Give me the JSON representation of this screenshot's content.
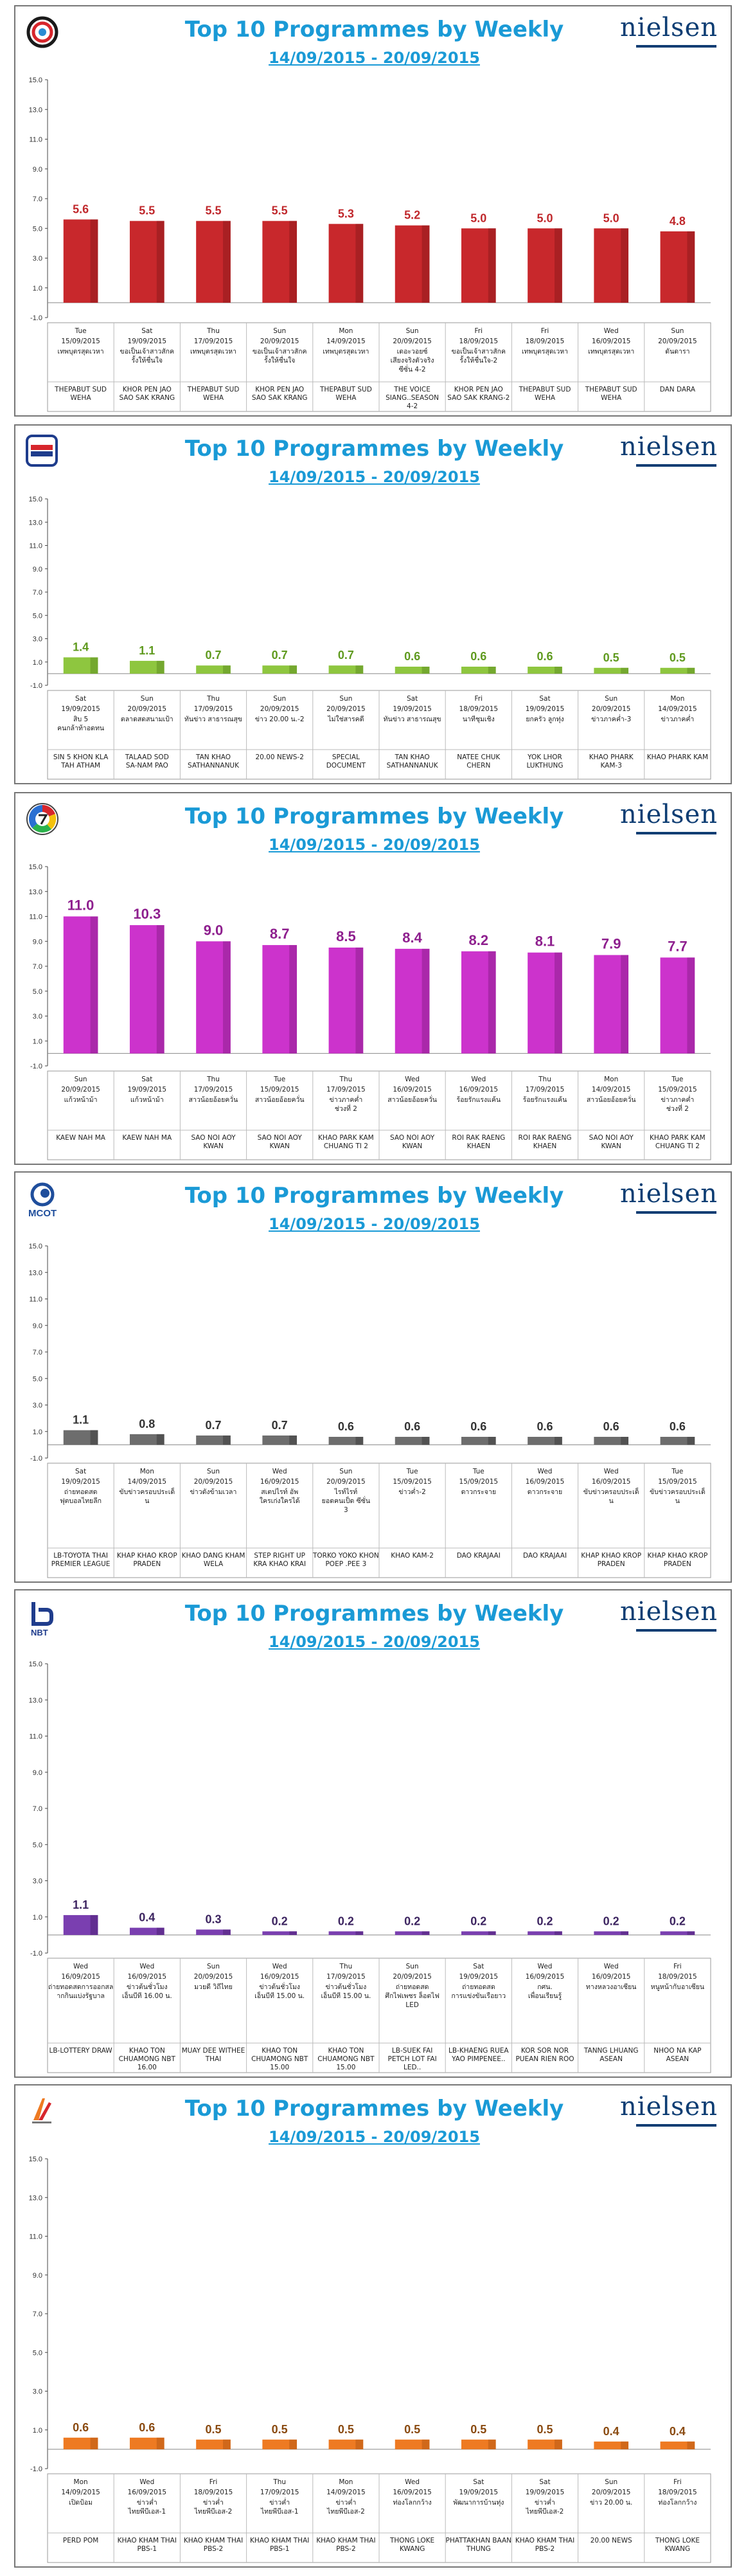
{
  "chart_data": [
    {
      "type": "bar",
      "title": "Top 10 Programmes by Weekly",
      "date_range": "14/09/2015 - 20/09/2015",
      "channel_logo": "channel-3-logo",
      "color": "#c8282c",
      "color_dark": "#8f1a1d",
      "value_color": "#c0282c",
      "ylim": [
        -1.0,
        15.0
      ],
      "yticks": [
        "15.0",
        "13.0",
        "11.0",
        "9.0",
        "7.0",
        "5.0",
        "3.0",
        "1.0",
        "-1.0"
      ],
      "categories": [
        "THEPABUT SUD WEHA",
        "KHOR PEN JAO SAO SAK KRANG",
        "THEPABUT SUD WEHA",
        "KHOR PEN JAO SAO SAK KRANG",
        "THEPABUT SUD WEHA",
        "THE VOICE SIANG..SEASON 4-2",
        "KHOR PEN JAO SAO SAK KRANG-2",
        "THEPABUT SUD WEHA",
        "THEPABUT SUD WEHA",
        "DAN DARA"
      ],
      "values": [
        5.6,
        5.5,
        5.5,
        5.5,
        5.3,
        5.2,
        5.0,
        5.0,
        5.0,
        4.8
      ],
      "days": [
        "Tue",
        "Sat",
        "Thu",
        "Sun",
        "Mon",
        "Sun",
        "Fri",
        "Fri",
        "Wed",
        "Sun"
      ],
      "dates": [
        "15/09/2015",
        "19/09/2015",
        "17/09/2015",
        "20/09/2015",
        "14/09/2015",
        "20/09/2015",
        "18/09/2015",
        "18/09/2015",
        "16/09/2015",
        "20/09/2015"
      ],
      "thai": [
        "เทพบุตรสุดเวหา",
        "ขอเป็นเจ้าสาวสักครั้งให้ชื่นใจ",
        "เทพบุตรสุดเวหา",
        "ขอเป็นเจ้าสาวสักครั้งให้ชื่นใจ",
        "เทพบุตรสุดเวหา",
        "เดอะวอยซ์ เสียงจริงตัวจริง ซีซั่น 4-2",
        "ขอเป็นเจ้าสาวสักครั้งให้ชื่นใจ-2",
        "เทพบุตรสุดเวหา",
        "เทพบุตรสุดเวหา",
        "ดันดารา"
      ]
    },
    {
      "type": "bar",
      "title": "Top 10 Programmes by Weekly",
      "date_range": "14/09/2015 - 20/09/2015",
      "channel_logo": "channel-5-logo",
      "color": "#8ec63f",
      "color_dark": "#5e8f22",
      "value_color": "#5f9a1e",
      "ylim": [
        -1.0,
        15.0
      ],
      "yticks": [
        "15.0",
        "13.0",
        "11.0",
        "9.0",
        "7.0",
        "5.0",
        "3.0",
        "1.0",
        "-1.0"
      ],
      "categories": [
        "SIN 5 KHON KLA TAH ATHAM",
        "TALAAD SOD SA-NAM PAO",
        "TAN KHAO SATHANNANUK",
        "20.00 NEWS-2",
        "SPECIAL DOCUMENT",
        "TAN KHAO SATHANNANUK",
        "NATEE CHUK CHERN",
        "YOK LHOR LUKTHUNG",
        "KHAO PHARK KAM-3",
        "KHAO PHARK KAM"
      ],
      "values": [
        1.4,
        1.1,
        0.7,
        0.7,
        0.7,
        0.6,
        0.6,
        0.6,
        0.5,
        0.5
      ],
      "days": [
        "Sat",
        "Sun",
        "Thu",
        "Sun",
        "Sun",
        "Sat",
        "Fri",
        "Sat",
        "Sun",
        "Mon"
      ],
      "dates": [
        "19/09/2015",
        "20/09/2015",
        "17/09/2015",
        "20/09/2015",
        "20/09/2015",
        "19/09/2015",
        "18/09/2015",
        "19/09/2015",
        "20/09/2015",
        "14/09/2015"
      ],
      "thai": [
        "สิบ 5 คนกล้าท้าอดทน",
        "ตลาดสดสนามเป้า",
        "ทันข่าว สาธารณสุข",
        "ข่าว 20.00 น.-2",
        "ไม่ใช่สารคดี",
        "ทันข่าว สาธารณสุข",
        "นาทีชุมเชิง",
        "ยกครัว ลูกทุ่ง",
        "ข่าวภาคค่ำ-3",
        "ข่าวภาคค่ำ"
      ]
    },
    {
      "type": "bar",
      "title": "Top 10 Programmes by Weekly",
      "date_range": "14/09/2015 - 20/09/2015",
      "channel_logo": "channel-7-logo",
      "color": "#cc33cc",
      "color_dark": "#8e1f8e",
      "value_color": "#8e1f8e",
      "ylim": [
        -1.0,
        15.0
      ],
      "yticks": [
        "15.0",
        "13.0",
        "11.0",
        "9.0",
        "7.0",
        "5.0",
        "3.0",
        "1.0",
        "-1.0"
      ],
      "categories": [
        "KAEW NAH MA",
        "KAEW NAH MA",
        "SAO NOI AOY KWAN",
        "SAO NOI AOY KWAN",
        "KHAO PARK KAM CHUANG TI 2",
        "SAO NOI AOY KWAN",
        "ROI RAK RAENG KHAEN",
        "ROI RAK RAENG KHAEN",
        "SAO NOI AOY KWAN",
        "KHAO PARK KAM CHUANG TI 2"
      ],
      "values": [
        11.0,
        10.3,
        9.0,
        8.7,
        8.5,
        8.4,
        8.2,
        8.1,
        7.9,
        7.7
      ],
      "days": [
        "Sun",
        "Sat",
        "Thu",
        "Tue",
        "Thu",
        "Wed",
        "Wed",
        "Thu",
        "Mon",
        "Tue"
      ],
      "dates": [
        "20/09/2015",
        "19/09/2015",
        "17/09/2015",
        "15/09/2015",
        "17/09/2015",
        "16/09/2015",
        "16/09/2015",
        "17/09/2015",
        "14/09/2015",
        "15/09/2015"
      ],
      "thai": [
        "แก้วหน้าม้า",
        "แก้วหน้าม้า",
        "สาวน้อยอ้อยควั่น",
        "สาวน้อยอ้อยควั่น",
        "ข่าวภาคค่ำ ช่วงที่ 2",
        "สาวน้อยอ้อยควั่น",
        "ร้อยรักแรงแค้น",
        "ร้อยรักแรงแค้น",
        "สาวน้อยอ้อยควั่น",
        "ข่าวภาคค่ำ ช่วงที่ 2"
      ]
    },
    {
      "type": "bar",
      "title": "Top 10 Programmes by Weekly",
      "date_range": "14/09/2015 - 20/09/2015",
      "channel_logo": "mcot-logo",
      "logo_text": "MCOT",
      "color": "#6d6d6d",
      "color_dark": "#3c3c3c",
      "value_color": "#333333",
      "ylim": [
        -1.0,
        15.0
      ],
      "yticks": [
        "15.0",
        "13.0",
        "11.0",
        "9.0",
        "7.0",
        "5.0",
        "3.0",
        "1.0",
        "-1.0"
      ],
      "categories": [
        "LB-TOYOTA THAI PREMIER LEAGUE",
        "KHAP KHAO KROP PRADEN",
        "KHAO DANG KHAM WELA",
        "STEP RIGHT UP KRA KHAO KRAI",
        "TORKO YOKO KHON POEP .PEE 3",
        "KHAO KAM-2",
        "DAO KRAJAAI",
        "DAO KRAJAAI",
        "KHAP KHAO KROP PRADEN",
        "KHAP KHAO KROP PRADEN"
      ],
      "values": [
        1.1,
        0.8,
        0.7,
        0.7,
        0.6,
        0.6,
        0.6,
        0.6,
        0.6,
        0.6
      ],
      "days": [
        "Sat",
        "Mon",
        "Sun",
        "Wed",
        "Sun",
        "Tue",
        "Tue",
        "Wed",
        "Wed",
        "Tue"
      ],
      "dates": [
        "19/09/2015",
        "14/09/2015",
        "20/09/2015",
        "16/09/2015",
        "20/09/2015",
        "15/09/2015",
        "15/09/2015",
        "16/09/2015",
        "16/09/2015",
        "15/09/2015"
      ],
      "thai": [
        "ถ่ายทอดสด ฟุตบอลไทยลีก",
        "ขับข่าวครอบประเด็น",
        "ข่าวดังข้ามเวลา",
        "สเตปไรท์ อัพ ใครเก่งใครได้",
        "ไรท์ไรท์ ยอดคนเป็ด ซีซั่น 3",
        "ข่าวค่ำ-2",
        "ดาวกระจาย",
        "ดาวกระจาย",
        "ขับข่าวครอบประเด็น",
        "ขับข่าวครอบประเด็น"
      ]
    },
    {
      "type": "bar",
      "title": "Top 10 Programmes by Weekly",
      "date_range": "14/09/2015 - 20/09/2015",
      "channel_logo": "nbt-logo",
      "logo_text": "NBT",
      "color": "#7a3fb0",
      "color_dark": "#4e2378",
      "value_color": "#3c2460",
      "ylim": [
        -1.0,
        15.0
      ],
      "yticks": [
        "15.0",
        "13.0",
        "11.0",
        "9.0",
        "7.0",
        "5.0",
        "3.0",
        "1.0",
        "-1.0"
      ],
      "categories": [
        "LB-LOTTERY DRAW",
        "KHAO TON CHUAMONG NBT 16.00",
        "MUAY DEE WITHEE THAI",
        "KHAO TON CHUAMONG NBT 15.00",
        "KHAO TON CHUAMONG NBT 15.00",
        "LB-SUEK FAI PETCH LOT FAI LED..",
        "LB-KHAENG RUEA YAO PIMPENEE..",
        "KOR SOR NOR PUEAN RIEN ROO",
        "TANNG LHUANG ASEAN",
        "NHOO NA KAP ASEAN"
      ],
      "values": [
        1.1,
        0.4,
        0.3,
        0.2,
        0.2,
        0.2,
        0.2,
        0.2,
        0.2,
        0.2
      ],
      "days": [
        "Wed",
        "Wed",
        "Sun",
        "Wed",
        "Thu",
        "Sun",
        "Sat",
        "Wed",
        "Wed",
        "Fri"
      ],
      "dates": [
        "16/09/2015",
        "16/09/2015",
        "20/09/2015",
        "16/09/2015",
        "17/09/2015",
        "20/09/2015",
        "19/09/2015",
        "16/09/2015",
        "16/09/2015",
        "18/09/2015"
      ],
      "thai": [
        "ถ่ายทอดสดการออกสลากกินแบ่งรัฐบาล",
        "ข่าวต้นชั่วโมง เอ็นบีที 16.00 น.",
        "มวยดี วิถีไทย",
        "ข่าวต้นชั่วโมง เอ็นบีที 15.00 น.",
        "ข่าวต้นชั่วโมง เอ็นบีที 15.00 น.",
        "ถ่ายทอดสด ศึกไฟเพชร ล็อตไฟ LED",
        "ถ่ายทอดสด การแข่งขันเรือยาว",
        "กศน. เพื่อนเรียนรู้",
        "ทางหลวงอาเซียน",
        "หนูหน้ากับอาเซียน"
      ]
    },
    {
      "type": "bar",
      "title": "Top 10 Programmes by Weekly",
      "date_range": "14/09/2015 - 20/09/2015",
      "channel_logo": "thai-pbs-logo",
      "color": "#ee7a22",
      "color_dark": "#b85a14",
      "value_color": "#8a4a10",
      "ylim": [
        -1.0,
        15.0
      ],
      "yticks": [
        "15.0",
        "13.0",
        "11.0",
        "9.0",
        "7.0",
        "5.0",
        "3.0",
        "1.0",
        "-1.0"
      ],
      "categories": [
        "PERD POM",
        "KHAO KHAM THAI PBS-1",
        "KHAO KHAM THAI PBS-2",
        "KHAO KHAM THAI PBS-1",
        "KHAO KHAM THAI PBS-2",
        "THONG LOKE KWANG",
        "PHATTAKHAN BAAN THUNG",
        "KHAO KHAM THAI PBS-2",
        "20.00 NEWS",
        "THONG LOKE KWANG"
      ],
      "values": [
        0.6,
        0.6,
        0.5,
        0.5,
        0.5,
        0.5,
        0.5,
        0.5,
        0.4,
        0.4
      ],
      "days": [
        "Mon",
        "Wed",
        "Fri",
        "Thu",
        "Mon",
        "Wed",
        "Sat",
        "Sat",
        "Sun",
        "Fri"
      ],
      "dates": [
        "14/09/2015",
        "16/09/2015",
        "18/09/2015",
        "17/09/2015",
        "14/09/2015",
        "16/09/2015",
        "19/09/2015",
        "19/09/2015",
        "20/09/2015",
        "18/09/2015"
      ],
      "thai": [
        "เปิดป้อม",
        "ข่าวค่ำ ไทยพีบีเอส-1",
        "ข่าวค่ำ ไทยพีบีเอส-2",
        "ข่าวค่ำ ไทยพีบีเอส-1",
        "ข่าวค่ำ ไทยพีบีเอส-2",
        "ท่องโลกกว้าง",
        "พัฒนาการบ้านทุ่ง",
        "ข่าวค่ำ ไทยพีบีเอส-2",
        "ข่าว 20.00 น.",
        "ท่องโลกกว้าง"
      ]
    }
  ]
}
